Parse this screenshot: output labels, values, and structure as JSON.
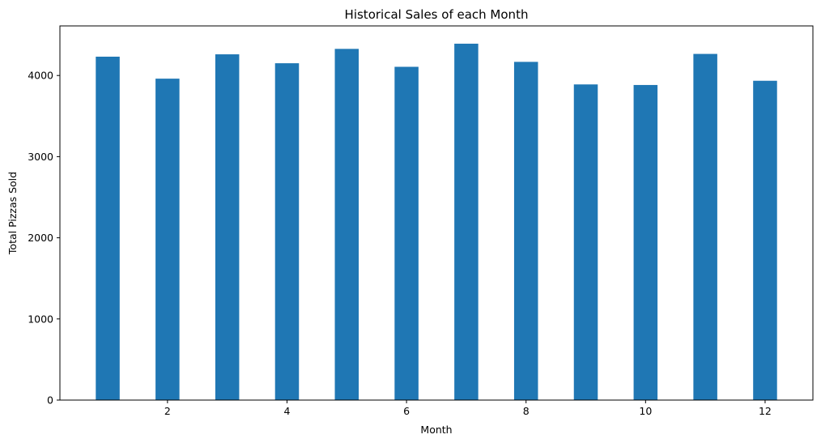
{
  "chart_data": {
    "type": "bar",
    "title": "Historical Sales of each Month",
    "xlabel": "Month",
    "ylabel": "Total Pizzas Sold",
    "categories": [
      1,
      2,
      3,
      4,
      5,
      6,
      7,
      8,
      9,
      10,
      11,
      12
    ],
    "values": [
      4232,
      3961,
      4261,
      4151,
      4328,
      4107,
      4392,
      4168,
      3890,
      3883,
      4266,
      3935
    ],
    "xlim": [
      0.2,
      12.8
    ],
    "ylim": [
      0,
      4611
    ],
    "xticks": [
      2,
      4,
      6,
      8,
      10,
      12
    ],
    "yticks": [
      0,
      1000,
      2000,
      3000,
      4000
    ],
    "bar_width": 0.4,
    "bar_color": "#1f77b4",
    "grid": false,
    "legend": "none"
  }
}
